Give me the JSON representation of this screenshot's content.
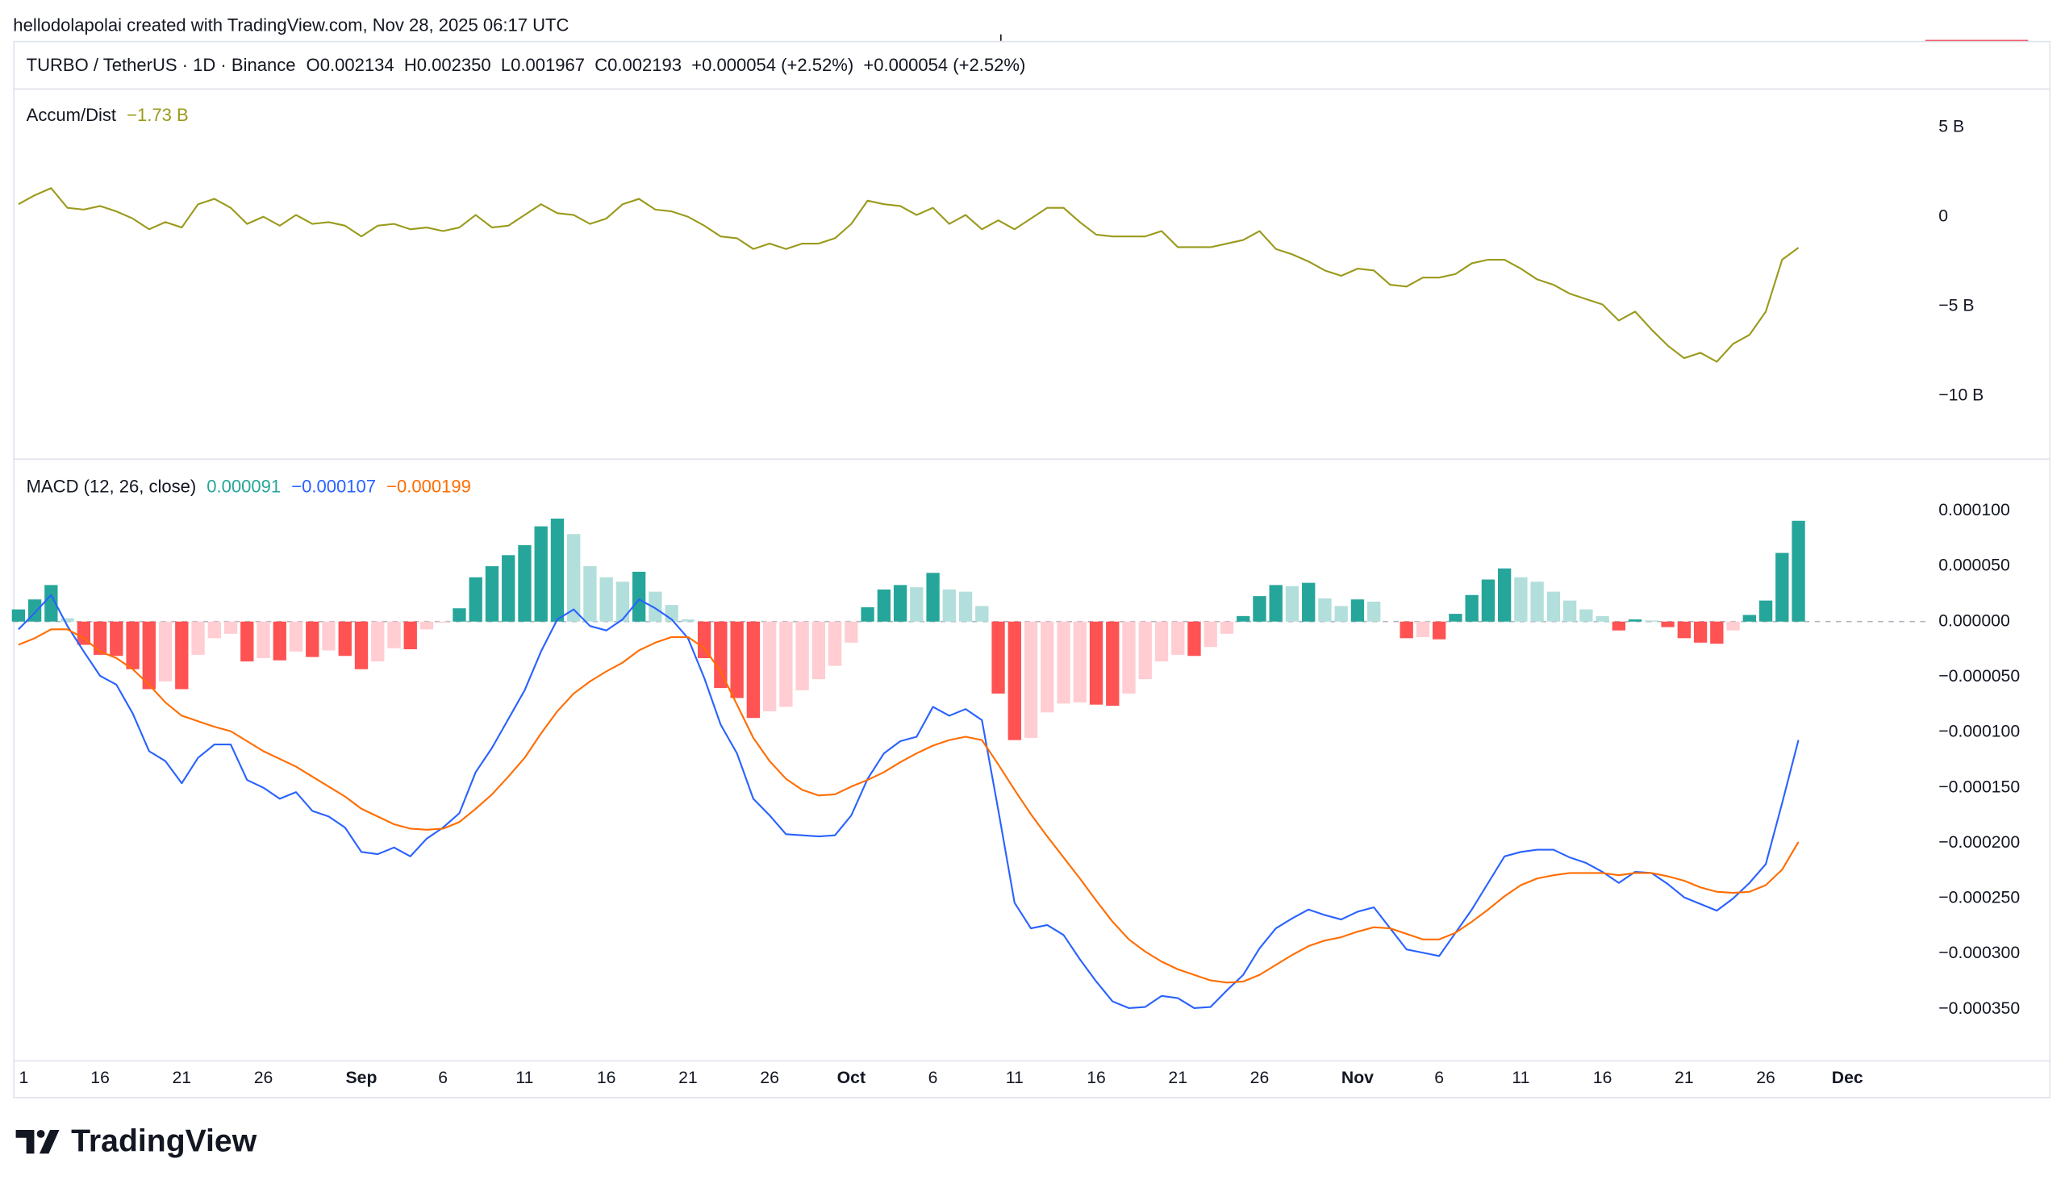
{
  "header": {
    "attribution": "hellodolapolai created with TradingView.com, Nov 28, 2025 06:17 UTC",
    "symbol": "TURBO / TetherUS · 1D · Binance",
    "quote": "O0.002134  H0.002350  L0.001967  C0.002193  +0.000054 (+2.52%)  +0.000054 (+2.52%)"
  },
  "chart_data": [
    {
      "type": "line",
      "title": "Accum/Dist",
      "legend_value": "−1.73 B",
      "color": "#9a9a1c",
      "ylim": [
        -13.5,
        7.1
      ],
      "yticks": [
        {
          "value": 5,
          "label": "5 B"
        },
        0,
        {
          "value": -5,
          "label": "−5 B"
        },
        {
          "value": -10,
          "label": "−10 B"
        }
      ],
      "values": [
        0.7,
        1.2,
        1.6,
        0.5,
        0.4,
        0.6,
        0.3,
        -0.1,
        -0.7,
        -0.3,
        -0.6,
        0.7,
        1.0,
        0.5,
        -0.4,
        0,
        -0.5,
        0.1,
        -0.4,
        -0.3,
        -0.5,
        -1.1,
        -0.5,
        -0.4,
        -0.7,
        -0.6,
        -0.8,
        -0.6,
        0.1,
        -0.6,
        -0.5,
        0.1,
        0.7,
        0.2,
        0.1,
        -0.4,
        -0.1,
        0.7,
        1.0,
        0.4,
        0.3,
        0,
        -0.5,
        -1.1,
        -1.2,
        -1.8,
        -1.5,
        -1.8,
        -1.5,
        -1.5,
        -1.2,
        -0.4,
        0.9,
        0.7,
        0.6,
        0.1,
        0.5,
        -0.4,
        0.1,
        -0.7,
        -0.2,
        -0.7,
        -0.1,
        0.5,
        0.5,
        -0.3,
        -1.0,
        -1.1,
        -1.1,
        -1.1,
        -0.8,
        -1.7,
        -1.7,
        -1.7,
        -1.5,
        -1.3,
        -0.8,
        -1.8,
        -2.1,
        -2.5,
        -3.0,
        -3.3,
        -2.9,
        -3.0,
        -3.8,
        -3.9,
        -3.4,
        -3.4,
        -3.2,
        -2.6,
        -2.4,
        -2.4,
        -2.9,
        -3.5,
        -3.8,
        -4.3,
        -4.6,
        -4.9,
        -5.8,
        -5.3,
        -6.3,
        -7.2,
        -7.9,
        -7.6,
        -8.1,
        -7.1,
        -6.6,
        -5.3,
        -2.4,
        -1.73,
        null,
        null,
        null
      ]
    },
    {
      "type": "combo",
      "title": "MACD (12, 26, close)",
      "categories": [
        "1",
        null,
        null,
        null,
        null,
        "16",
        null,
        null,
        null,
        null,
        "21",
        null,
        null,
        null,
        null,
        "26",
        null,
        null,
        null,
        null,
        null,
        "Sep",
        null,
        null,
        null,
        null,
        "6",
        null,
        null,
        null,
        null,
        "11",
        null,
        null,
        null,
        null,
        "16",
        null,
        null,
        null,
        null,
        "21",
        null,
        null,
        null,
        null,
        "26",
        null,
        null,
        null,
        null,
        "Oct",
        null,
        null,
        null,
        null,
        "6",
        null,
        null,
        null,
        null,
        "11",
        null,
        null,
        null,
        null,
        "16",
        null,
        null,
        null,
        null,
        "21",
        null,
        null,
        null,
        null,
        "26",
        null,
        null,
        null,
        null,
        null,
        "Nov",
        null,
        null,
        null,
        null,
        "6",
        null,
        null,
        null,
        null,
        "11",
        null,
        null,
        null,
        null,
        "16",
        null,
        null,
        null,
        null,
        "21",
        null,
        null,
        null,
        null,
        "26",
        null,
        null,
        null,
        null,
        "Dec"
      ],
      "ylim": [
        -0.000396,
        0.000145
      ],
      "yticks": [
        {
          "value": 0.0001,
          "label": "0.000100"
        },
        {
          "value": 5e-05,
          "label": "0.000050"
        },
        {
          "value": 0,
          "label": "0.000000"
        },
        {
          "value": -5e-05,
          "label": "−0.000050"
        },
        {
          "value": -0.0001,
          "label": "−0.000100"
        },
        {
          "value": -0.00015,
          "label": "−0.000150"
        },
        {
          "value": -0.0002,
          "label": "−0.000200"
        },
        {
          "value": -0.00025,
          "label": "−0.000250"
        },
        {
          "value": -0.0003,
          "label": "−0.000300"
        },
        {
          "value": -0.00035,
          "label": "−0.000350"
        }
      ],
      "series": [
        {
          "type": "bar",
          "legend_value": "0.000091",
          "color": "#26a69a",
          "colors": [
            "#26a69a",
            "#b2dfdb",
            "#ff5252",
            "#ffcdd2"
          ],
          "values": [
            1.1e-05,
            2e-05,
            3.3e-05,
            3e-06,
            -2.1e-05,
            -3e-05,
            -3.1e-05,
            -4.3e-05,
            -6.1e-05,
            -5.4e-05,
            -6.1e-05,
            -3e-05,
            -1.5e-05,
            -1.1e-05,
            -3.6e-05,
            -3.3e-05,
            -3.5e-05,
            -2.7e-05,
            -3.2e-05,
            -2.6e-05,
            -3.1e-05,
            -4.3e-05,
            -3.6e-05,
            -2.4e-05,
            -2.5e-05,
            -7e-06,
            -1e-06,
            1.2e-05,
            4e-05,
            5e-05,
            6e-05,
            6.9e-05,
            8.6e-05,
            9.3e-05,
            7.9e-05,
            5e-05,
            4e-05,
            3.6e-05,
            4.5e-05,
            2.7e-05,
            1.5e-05,
            2e-06,
            -3.3e-05,
            -6e-05,
            -6.9e-05,
            -8.7e-05,
            -8.1e-05,
            -7.7e-05,
            -6.2e-05,
            -5.2e-05,
            -4e-05,
            -1.9e-05,
            1.3e-05,
            2.9e-05,
            3.3e-05,
            3.1e-05,
            4.4e-05,
            2.9e-05,
            2.7e-05,
            1.4e-05,
            -6.5e-05,
            -0.000107,
            -0.000105,
            -8.2e-05,
            -7.4e-05,
            -7.3e-05,
            -7.5e-05,
            -7.6e-05,
            -6.5e-05,
            -5.2e-05,
            -3.6e-05,
            -3e-05,
            -3.1e-05,
            -2.3e-05,
            -1.1e-05,
            5e-06,
            2.3e-05,
            3.3e-05,
            3.2e-05,
            3.5e-05,
            2.1e-05,
            1.4e-05,
            2e-05,
            1.8e-05,
            0,
            -1.5e-05,
            -1.4e-05,
            -1.6e-05,
            7e-06,
            2.4e-05,
            3.8e-05,
            4.8e-05,
            4e-05,
            3.6e-05,
            2.7e-05,
            1.9e-05,
            1.1e-05,
            5e-06,
            -8e-06,
            2e-06,
            1e-06,
            -5e-06,
            -1.5e-05,
            -1.9e-05,
            -2e-05,
            -8e-06,
            6e-06,
            1.9e-05,
            6.2e-05,
            9.1e-05,
            null,
            null,
            null
          ]
        },
        {
          "type": "line",
          "legend_value": "−0.000107",
          "color": "#2962ff",
          "values": [
            -7e-06,
            8e-06,
            2.4e-05,
            -4e-06,
            -2.7e-05,
            -4.9e-05,
            -5.7e-05,
            -8.3e-05,
            -0.000117,
            -0.000126,
            -0.000146,
            -0.000123,
            -0.000111,
            -0.000111,
            -0.000143,
            -0.00015,
            -0.00016,
            -0.000154,
            -0.000171,
            -0.000176,
            -0.000186,
            -0.000208,
            -0.00021,
            -0.000204,
            -0.000212,
            -0.000196,
            -0.000186,
            -0.000173,
            -0.000136,
            -0.000114,
            -8.8e-05,
            -6.2e-05,
            -2.7e-05,
            2e-06,
            1.1e-05,
            -4e-06,
            -8e-06,
            2e-06,
            2e-05,
            1.2e-05,
            2e-06,
            -1.5e-05,
            -5.1e-05,
            -9.3e-05,
            -0.000119,
            -0.00016,
            -0.000175,
            -0.000192,
            -0.000193,
            -0.000194,
            -0.000193,
            -0.000175,
            -0.000142,
            -0.000119,
            -0.000108,
            -0.000104,
            -7.7e-05,
            -8.5e-05,
            -7.9e-05,
            -8.9e-05,
            -0.00017,
            -0.000254,
            -0.000277,
            -0.000274,
            -0.000283,
            -0.000305,
            -0.000325,
            -0.000343,
            -0.000349,
            -0.000348,
            -0.000338,
            -0.00034,
            -0.000349,
            -0.000348,
            -0.000333,
            -0.000319,
            -0.000295,
            -0.000277,
            -0.000268,
            -0.00026,
            -0.000265,
            -0.000269,
            -0.000262,
            -0.000258,
            -0.000277,
            -0.000296,
            -0.000299,
            -0.000302,
            -0.000281,
            -0.00026,
            -0.000236,
            -0.000212,
            -0.000208,
            -0.000206,
            -0.000206,
            -0.000213,
            -0.000218,
            -0.000226,
            -0.000236,
            -0.000226,
            -0.000227,
            -0.000237,
            -0.000249,
            -0.000255,
            -0.000261,
            -0.00025,
            -0.000236,
            -0.000219,
            -0.000164,
            -0.000107,
            null,
            null,
            null
          ]
        },
        {
          "type": "line",
          "legend_value": "−0.000199",
          "color": "#ff6d00",
          "values": [
            -2.1e-05,
            -1.5e-05,
            -7e-06,
            -7e-06,
            -1.5e-05,
            -2.7e-05,
            -3.3e-05,
            -4.3e-05,
            -5.7e-05,
            -7.3e-05,
            -8.5e-05,
            -9e-05,
            -9.5e-05,
            -9.9e-05,
            -0.000108,
            -0.000117,
            -0.000124,
            -0.000131,
            -0.00014,
            -0.000149,
            -0.000158,
            -0.000169,
            -0.000176,
            -0.000183,
            -0.000187,
            -0.000188,
            -0.000187,
            -0.000181,
            -0.000169,
            -0.000156,
            -0.00014,
            -0.000123,
            -0.000101,
            -8.1e-05,
            -6.5e-05,
            -5.4e-05,
            -4.5e-05,
            -3.7e-05,
            -2.6e-05,
            -1.9e-05,
            -1.4e-05,
            -1.4e-05,
            -2.4e-05,
            -4.5e-05,
            -7.5e-05,
            -0.000105,
            -0.000126,
            -0.000142,
            -0.000152,
            -0.000157,
            -0.000156,
            -0.000149,
            -0.000143,
            -0.000136,
            -0.000127,
            -0.000119,
            -0.000112,
            -0.000107,
            -0.000104,
            -0.000107,
            -0.000129,
            -0.000152,
            -0.000174,
            -0.000194,
            -0.000213,
            -0.000232,
            -0.000252,
            -0.000271,
            -0.000287,
            -0.000298,
            -0.000307,
            -0.000314,
            -0.000319,
            -0.000324,
            -0.000326,
            -0.000325,
            -0.000319,
            -0.00031,
            -0.000301,
            -0.000293,
            -0.000288,
            -0.000285,
            -0.00028,
            -0.000276,
            -0.000277,
            -0.000282,
            -0.000287,
            -0.000287,
            -0.000281,
            -0.000271,
            -0.00026,
            -0.000248,
            -0.000238,
            -0.000232,
            -0.000229,
            -0.000227,
            -0.000227,
            -0.000227,
            -0.000229,
            -0.000227,
            -0.000227,
            -0.00023,
            -0.000234,
            -0.00024,
            -0.000244,
            -0.000245,
            -0.000244,
            -0.000238,
            -0.000224,
            -0.000199,
            null,
            null,
            null
          ]
        }
      ]
    }
  ],
  "footer": {
    "logo": "TradingView"
  }
}
